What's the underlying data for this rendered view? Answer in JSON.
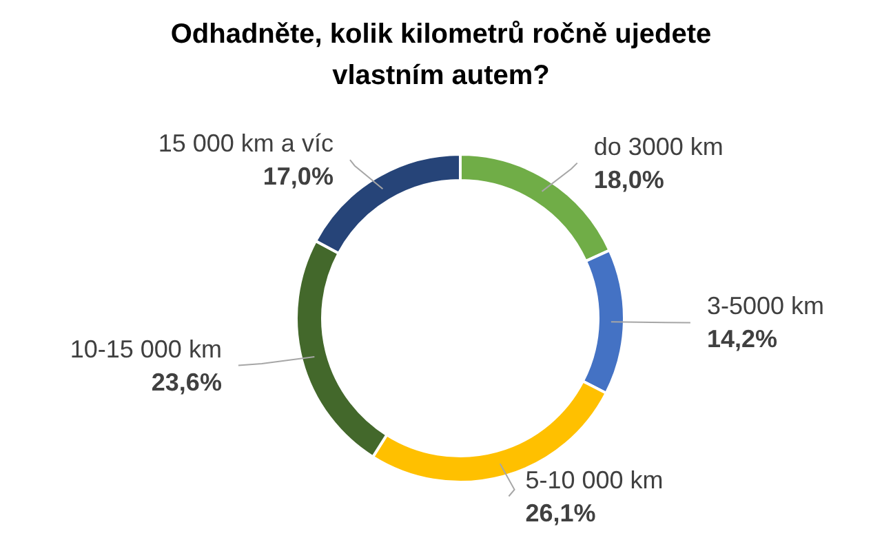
{
  "chart_data": {
    "type": "donut",
    "title": "Odhadněte, kolik kilometrů ročně ujedete vlastním autem?",
    "categories": [
      "do 3000 km",
      "3-5000 km",
      "5-10 000 km",
      "10-15 000 km",
      "15 000 km a víc"
    ],
    "values": [
      18.0,
      14.2,
      26.1,
      23.6,
      17.0
    ],
    "value_labels": [
      "18,0%",
      "14,2%",
      "26,1%",
      "23,6%",
      "17,0%"
    ],
    "colors": [
      "#70ad47",
      "#4472c4",
      "#ffc000",
      "#43682b",
      "#264478"
    ],
    "legend": false
  }
}
